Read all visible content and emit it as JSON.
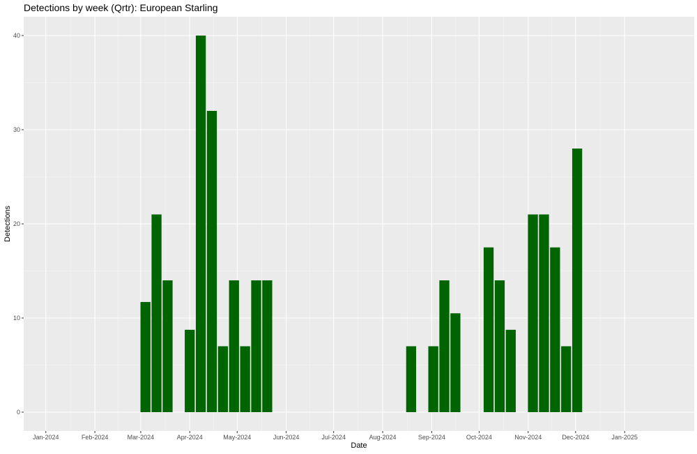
{
  "chart_data": {
    "type": "bar",
    "title": "Detections by week (Qrtr): European Starling",
    "xlabel": "Date",
    "ylabel": "Detections",
    "ylim": [
      -2,
      42
    ],
    "yticks": [
      0,
      10,
      20,
      30,
      40
    ],
    "xlim": [
      "2023-12-18",
      "2025-02-14"
    ],
    "xticks": [
      {
        "date": "2024-01-01",
        "label": "Jan-2024"
      },
      {
        "date": "2024-02-01",
        "label": "Feb-2024"
      },
      {
        "date": "2024-03-01",
        "label": "Mar-2024"
      },
      {
        "date": "2024-04-01",
        "label": "Apr-2024"
      },
      {
        "date": "2024-05-01",
        "label": "May-2024"
      },
      {
        "date": "2024-06-01",
        "label": "Jun-2024"
      },
      {
        "date": "2024-07-01",
        "label": "Jul-2024"
      },
      {
        "date": "2024-08-01",
        "label": "Aug-2024"
      },
      {
        "date": "2024-09-01",
        "label": "Sep-2024"
      },
      {
        "date": "2024-10-01",
        "label": "Oct-2024"
      },
      {
        "date": "2024-11-01",
        "label": "Nov-2024"
      },
      {
        "date": "2024-12-01",
        "label": "Dec-2024"
      },
      {
        "date": "2025-01-01",
        "label": "Jan-2025"
      }
    ],
    "bar_width_days": 6.3,
    "bars": [
      {
        "date": "2024-03-04",
        "value": 11.7
      },
      {
        "date": "2024-03-11",
        "value": 21
      },
      {
        "date": "2024-03-18",
        "value": 14
      },
      {
        "date": "2024-04-01",
        "value": 8.75
      },
      {
        "date": "2024-04-08",
        "value": 40
      },
      {
        "date": "2024-04-15",
        "value": 32
      },
      {
        "date": "2024-04-22",
        "value": 7
      },
      {
        "date": "2024-04-29",
        "value": 14
      },
      {
        "date": "2024-05-06",
        "value": 7
      },
      {
        "date": "2024-05-13",
        "value": 14
      },
      {
        "date": "2024-05-20",
        "value": 14
      },
      {
        "date": "2024-08-19",
        "value": 7
      },
      {
        "date": "2024-09-02",
        "value": 7
      },
      {
        "date": "2024-09-09",
        "value": 14
      },
      {
        "date": "2024-09-16",
        "value": 10.5
      },
      {
        "date": "2024-10-07",
        "value": 17.5
      },
      {
        "date": "2024-10-14",
        "value": 14
      },
      {
        "date": "2024-10-21",
        "value": 8.75
      },
      {
        "date": "2024-11-04",
        "value": 21
      },
      {
        "date": "2024-11-11",
        "value": 21
      },
      {
        "date": "2024-11-18",
        "value": 17.5
      },
      {
        "date": "2024-11-25",
        "value": 7
      },
      {
        "date": "2024-12-02",
        "value": 28
      }
    ],
    "grid": true,
    "colors": {
      "bar": "#006400",
      "panel_background": "#ebebeb",
      "grid_major": "#ffffff",
      "grid_minor": "#f5f5f5"
    }
  }
}
